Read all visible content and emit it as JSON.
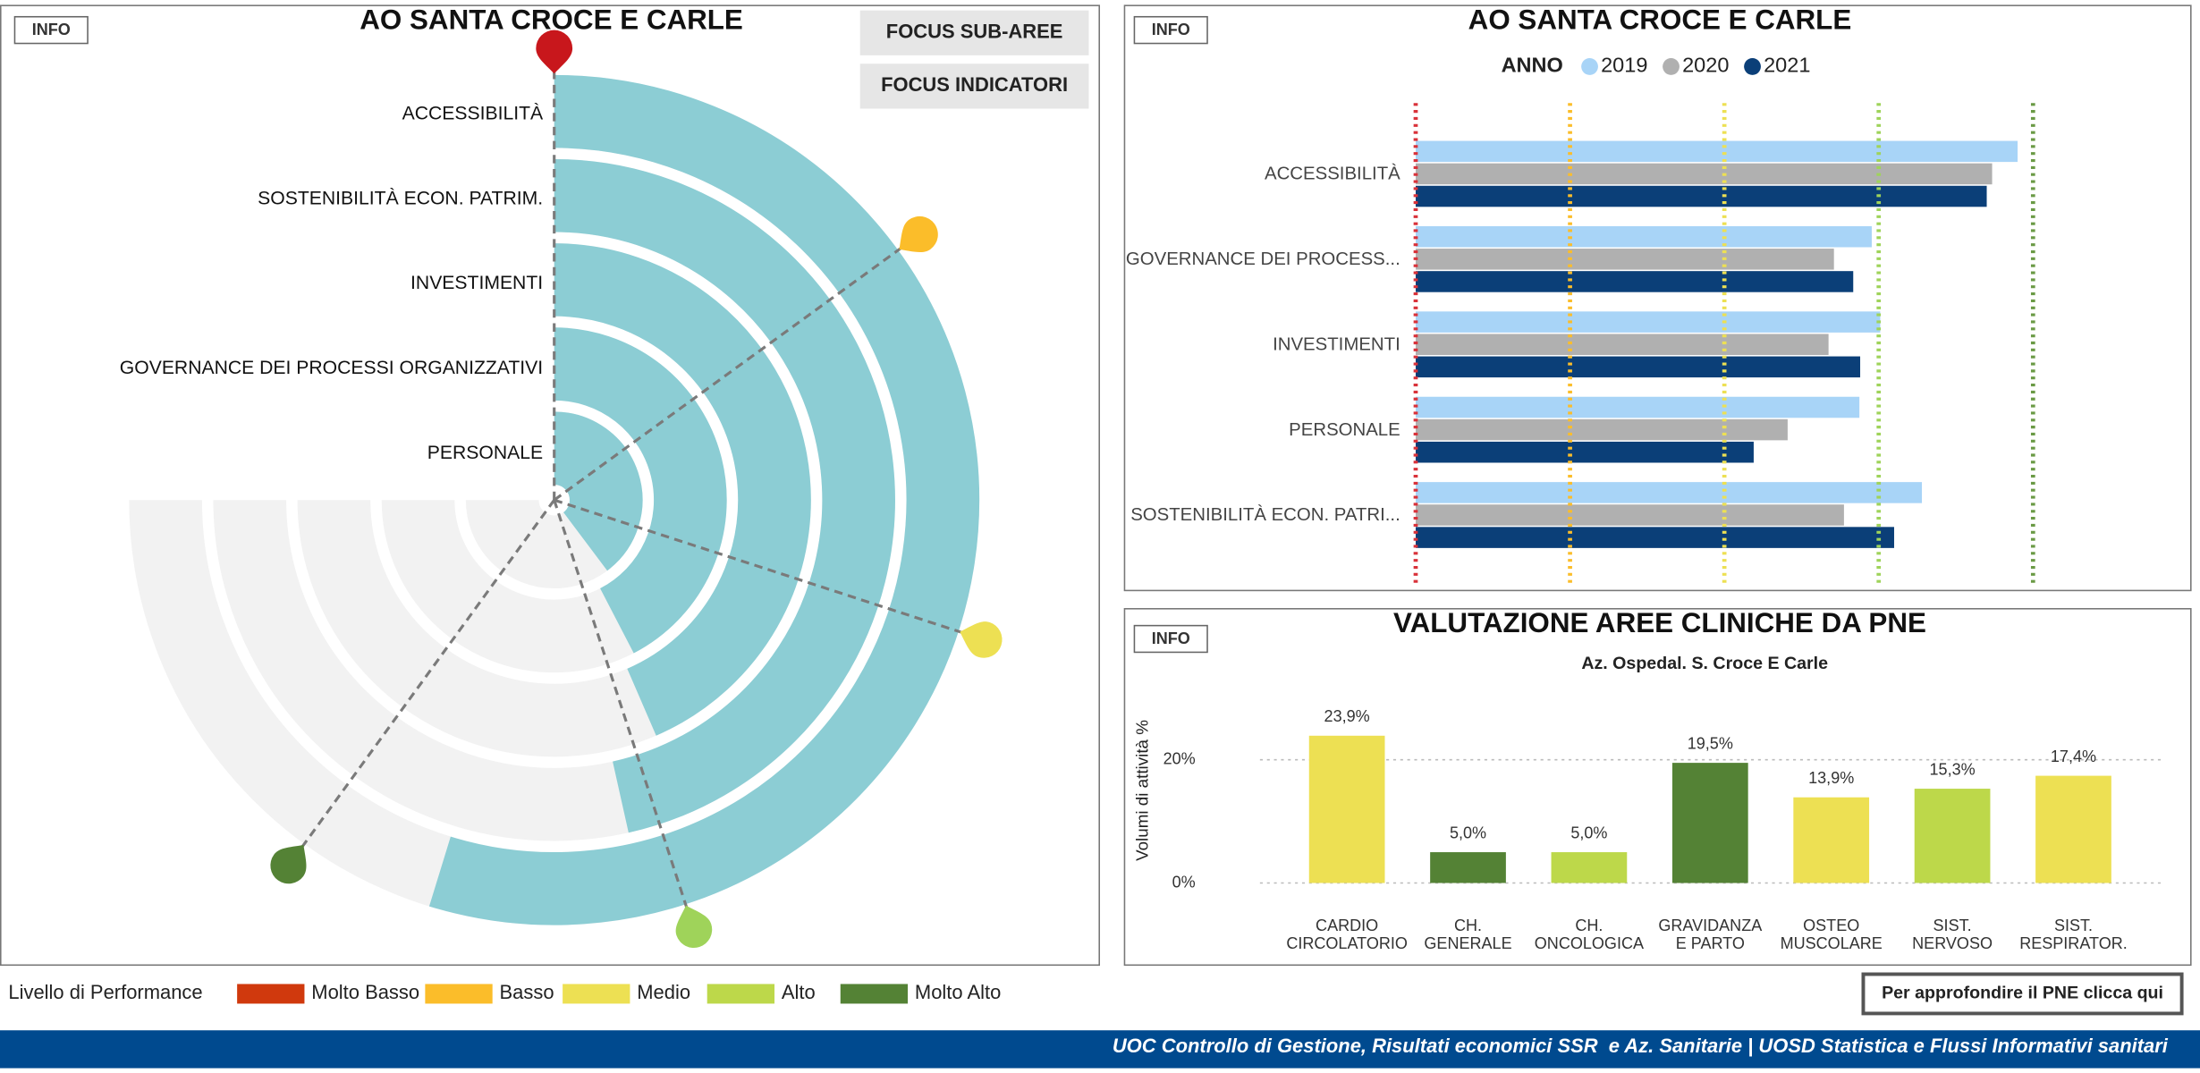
{
  "chart_data": [
    {
      "type": "radial_bar",
      "title": "AO SANTA CROCE E CARLE",
      "categories": [
        "ACCESSIBILITÀ",
        "SOSTENIBILITÀ ECON. PATRIM.",
        "INVESTIMENTI",
        "GOVERNANCE DEI PROCESSI ORGANIZZATIVI",
        "PERSONALE"
      ],
      "values": [
        73,
        62,
        58,
        56.5,
        53
      ],
      "color": "#8ccdd4",
      "background_color": "#f2f2f2",
      "ylim": [
        0,
        100
      ],
      "thresholds": [
        {
          "value": 0,
          "color": "#c8171c"
        },
        {
          "value": 20,
          "color": "#fbbd2a"
        },
        {
          "value": 40,
          "color": "#ede053"
        },
        {
          "value": 60,
          "color": "#9fd35a"
        },
        {
          "value": 80,
          "color": "#548235"
        }
      ]
    },
    {
      "type": "hbar",
      "title": "AO SANTA CROCE E CARLE",
      "legend_title": "ANNO",
      "categories": [
        "ACCESSIBILITÀ",
        "GOVERNANCE DEI PROCESS...",
        "INVESTIMENTI",
        "PERSONALE",
        "SOSTENIBILITÀ ECON. PATRI..."
      ],
      "series": [
        {
          "name": "2019",
          "color": "#a8d4f7",
          "values": [
            78,
            59.1,
            60.2,
            57.5,
            65.6
          ]
        },
        {
          "name": "2020",
          "color": "#b0b0b0",
          "values": [
            74.7,
            54.2,
            53.5,
            48.2,
            55.5
          ]
        },
        {
          "name": "2021",
          "color": "#0b3f78",
          "values": [
            74,
            56.7,
            57.6,
            43.8,
            62
          ]
        }
      ],
      "xlim": [
        0,
        100
      ],
      "thresholds": [
        {
          "value": 0,
          "color": "#d9323a"
        },
        {
          "value": 20,
          "color": "#fbbd2a"
        },
        {
          "value": 40,
          "color": "#ede053"
        },
        {
          "value": 60,
          "color": "#9fd35a"
        },
        {
          "value": 80,
          "color": "#6a9a45"
        }
      ]
    },
    {
      "type": "bar",
      "title": "VALUTAZIONE AREE CLINICHE DA PNE",
      "subtitle": "Az. Ospedal. S. Croce E Carle",
      "y_label": "Volumi di attività %",
      "categories": [
        "CARDIO\nCIRCOLATORIO",
        "CH.\nGENERALE",
        "CH.\nONCOLOGICA",
        "GRAVIDANZA\nE PARTO",
        "OSTEO\nMUSCOLARE",
        "SIST.\nNERVOSO",
        "SIST.\nRESPIRATOR."
      ],
      "values": [
        23.9,
        5.0,
        5.0,
        19.5,
        13.9,
        15.3,
        17.4
      ],
      "value_labels": [
        "23,9%",
        "5,0%",
        "5,0%",
        "19,5%",
        "13,9%",
        "15,3%",
        "17,4%"
      ],
      "colors": [
        "#ede053",
        "#548235",
        "#bdd84a",
        "#548235",
        "#ede053",
        "#bdd84a",
        "#ede053"
      ],
      "ylim": [
        0,
        28
      ],
      "yticks": [
        {
          "value": 0,
          "label": "0%"
        },
        {
          "value": 20,
          "label": "20%"
        }
      ],
      "grid": true
    }
  ],
  "info_buttons": [
    "INFO",
    "INFO",
    "INFO"
  ],
  "focus_buttons": [
    "FOCUS SUB-AREE",
    "FOCUS INDICATORI"
  ],
  "performance_legend": {
    "title": "Livello di Performance",
    "items": [
      {
        "label": "Molto Basso",
        "color": "#d0390d"
      },
      {
        "label": "Basso",
        "color": "#fbbd2a"
      },
      {
        "label": "Medio",
        "color": "#ede053"
      },
      {
        "label": "Alto",
        "color": "#bdd84a"
      },
      {
        "label": "Molto Alto",
        "color": "#548235"
      }
    ]
  },
  "pne_link": "Per approfondire il PNE clicca qui",
  "footer": "UOC Controllo di Gestione, Risultati economici SSR  e Az. Sanitarie | UOSD Statistica e Flussi Informativi sanitari"
}
